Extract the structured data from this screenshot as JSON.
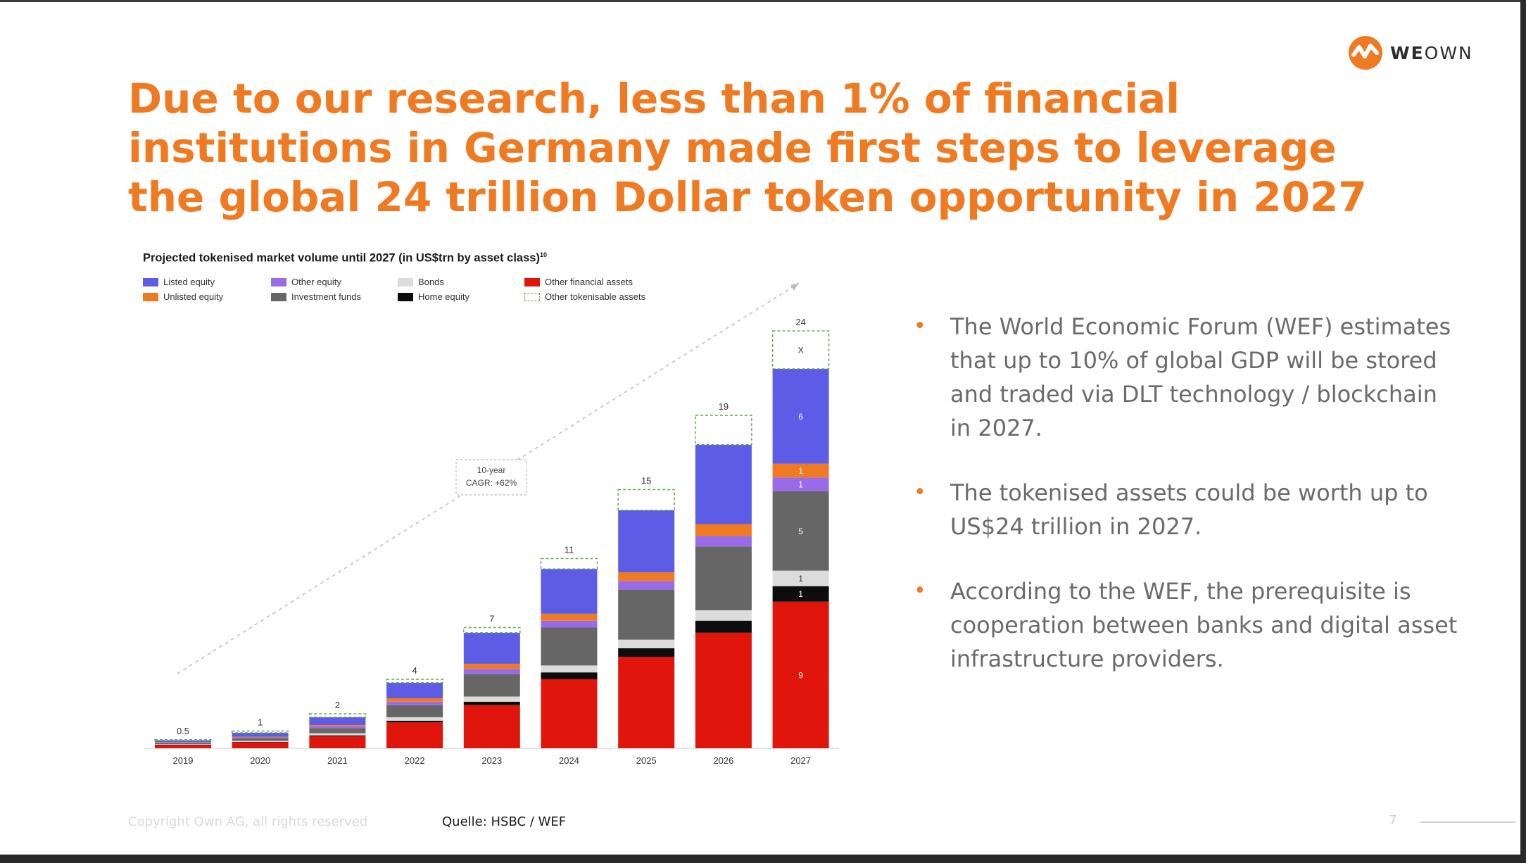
{
  "logo": {
    "text_strong": "WE",
    "text_light": "OWN",
    "color": "#f07a22"
  },
  "headline": "Due to our research, less than 1% of financial institutions in Germany made first steps to leverage the global 24 trillion Dollar token opportunity in 2027",
  "chart_title": "Projected tokenised market volume until 2027 (in US$trn by asset class)",
  "chart_title_sup": "10",
  "legend": [
    {
      "label": "Listed equity",
      "color": "#5c5ce6",
      "dashed": false
    },
    {
      "label": "Other equity",
      "color": "#9a6be8",
      "dashed": false
    },
    {
      "label": "Bonds",
      "color": "#dcdcdc",
      "dashed": false
    },
    {
      "label": "Other financial assets",
      "color": "#e0150c",
      "dashed": false
    },
    {
      "label": "Unlisted equity",
      "color": "#f07a22",
      "dashed": false
    },
    {
      "label": "Investment funds",
      "color": "#666666",
      "dashed": false
    },
    {
      "label": "Home equity",
      "color": "#0d0d0d",
      "dashed": false
    },
    {
      "label": "Other tokenisable assets",
      "color": "#6aa84f",
      "dashed": true
    }
  ],
  "chart_data": {
    "type": "bar",
    "stacked": true,
    "title": "Projected tokenised market volume until 2027 (in US$trn by asset class)",
    "categories": [
      "2019",
      "2020",
      "2021",
      "2022",
      "2023",
      "2024",
      "2025",
      "2026",
      "2027"
    ],
    "totals": [
      0.5,
      1,
      2,
      4,
      7,
      11,
      15,
      19,
      24
    ],
    "total_labels": [
      "0.5",
      "1",
      "2",
      "4",
      "7",
      "11",
      "15",
      "19",
      "24"
    ],
    "series": [
      {
        "name": "Other financial assets",
        "color": "#e0150c",
        "values": [
          0.2,
          0.35,
          0.7,
          1.5,
          2.5,
          4.0,
          5.3,
          6.7,
          8.5
        ]
      },
      {
        "name": "Home equity",
        "color": "#0d0d0d",
        "values": [
          0.01,
          0.02,
          0.05,
          0.1,
          0.2,
          0.4,
          0.5,
          0.7,
          0.9
        ]
      },
      {
        "name": "Bonds",
        "color": "#dcdcdc",
        "values": [
          0.03,
          0.06,
          0.12,
          0.2,
          0.3,
          0.4,
          0.5,
          0.6,
          0.9
        ]
      },
      {
        "name": "Investment funds",
        "color": "#666666",
        "values": [
          0.08,
          0.15,
          0.3,
          0.7,
          1.3,
          2.2,
          2.9,
          3.7,
          4.6
        ]
      },
      {
        "name": "Other equity",
        "color": "#9a6be8",
        "values": [
          0.02,
          0.05,
          0.1,
          0.2,
          0.3,
          0.4,
          0.5,
          0.6,
          0.8
        ]
      },
      {
        "name": "Unlisted equity",
        "color": "#f07a22",
        "values": [
          0.02,
          0.04,
          0.08,
          0.2,
          0.3,
          0.4,
          0.5,
          0.7,
          0.8
        ]
      },
      {
        "name": "Listed equity",
        "color": "#5c5ce6",
        "values": [
          0.09,
          0.23,
          0.45,
          0.9,
          1.8,
          2.6,
          3.6,
          4.6,
          5.5
        ]
      },
      {
        "name": "Other tokenisable assets",
        "color": "#ffffff",
        "dashed": true,
        "values": [
          0.05,
          0.1,
          0.2,
          0.2,
          0.3,
          0.6,
          1.2,
          1.7,
          2.2
        ]
      }
    ],
    "segment_labels_2027": [
      {
        "series": "Other financial assets",
        "text": "9"
      },
      {
        "series": "Home equity",
        "text": "1"
      },
      {
        "series": "Bonds",
        "text": "1"
      },
      {
        "series": "Investment funds",
        "text": "5"
      },
      {
        "series": "Other equity",
        "text": "1"
      },
      {
        "series": "Unlisted equity",
        "text": "1"
      },
      {
        "series": "Listed equity",
        "text": "6"
      },
      {
        "series": "Other tokenisable assets",
        "text": "X"
      }
    ],
    "annotation": {
      "line1": "10-year",
      "line2": "CAGR: +62%"
    },
    "ylim": [
      0,
      26
    ],
    "grid": false,
    "legend_position": "top-left"
  },
  "bullets": [
    "The World Economic Forum (WEF) estimates that up to 10% of global GDP will be stored and traded via DLT technology / blockchain in 2027.",
    "The tokenised assets could be worth up to US$24 trillion in 2027.",
    "According to the WEF, the prerequisite is cooperation between banks and digital asset infrastructure providers."
  ],
  "bullet_marker": "•",
  "footer": {
    "copyright": "Copyright Own AG, all rights reserved",
    "source": "Quelle: HSBC / WEF",
    "page_number": "7"
  }
}
